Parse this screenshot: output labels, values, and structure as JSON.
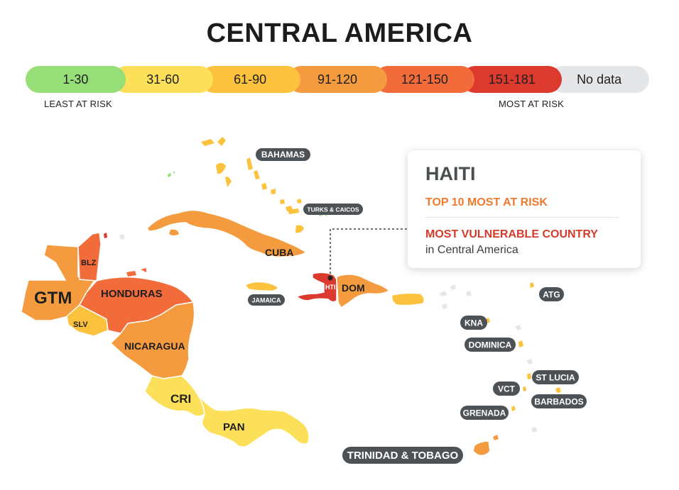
{
  "title": "CENTRAL AMERICA",
  "legend": {
    "bins": [
      {
        "label": "1-30",
        "color": "#96df78"
      },
      {
        "label": "31-60",
        "color": "#fde05a"
      },
      {
        "label": "61-90",
        "color": "#fcc23d"
      },
      {
        "label": "91-120",
        "color": "#f49a3f"
      },
      {
        "label": "121-150",
        "color": "#f26b3a"
      },
      {
        "label": "151-181",
        "color": "#dc3a2e"
      },
      {
        "label": "No data",
        "color": "#e5e6e8"
      }
    ],
    "low_label": "LEAST AT RISK",
    "high_label": "MOST AT RISK"
  },
  "countries": {
    "gtm": "GTM",
    "blz": "BLZ",
    "slv": "SLV",
    "hnd": "HONDURAS",
    "nic": "NICARAGUA",
    "cri": "CRI",
    "pan": "PAN",
    "cub": "CUBA",
    "hti": "HTI",
    "dom": "DOM"
  },
  "callouts": {
    "bahamas": "BAHAMAS",
    "turks": "TURKS & CAICOS",
    "jamaica": "JAMAICA",
    "atg": "ATG",
    "kna": "KNA",
    "dominica": "DOMINICA",
    "stlucia": "ST LUCIA",
    "vct": "VCT",
    "barbados": "BARBADOS",
    "grenada": "GRENADA",
    "trinidad": "TRINIDAD & TOBAGO"
  },
  "tooltip": {
    "country": "HAITI",
    "rank": "TOP 10 MOST AT RISK",
    "vulnerability": "MOST VULNERABLE COUNTRY",
    "region": "in Central America"
  },
  "colors": {
    "orange": "#f49a3f",
    "red_orange": "#f26b3a",
    "red": "#dc3a2e",
    "amber": "#fcc23d",
    "yellow": "#fde05a",
    "green": "#96df78",
    "nodata": "#e5e6e8",
    "pill": "#4d5256"
  }
}
